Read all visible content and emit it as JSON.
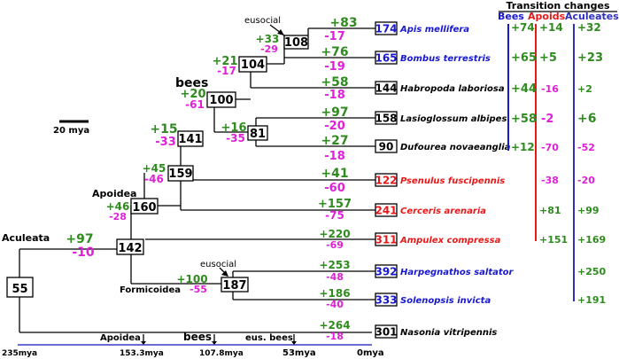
{
  "header": {
    "title": "Transition changes",
    "col_bees": "Bees",
    "col_apoids": "Apoids",
    "col_aculeates": "Aculeates"
  },
  "colors": {
    "gain": "#2e8b1e",
    "loss": "#e020d8",
    "bees": "#1818d0",
    "apoids": "#e81818",
    "aculeates": "#3030c0",
    "timeline": "#3a3ac0"
  },
  "scale_bar": {
    "label": "20 mya"
  },
  "labels": {
    "bees": "bees",
    "apoidea": "Apoidea",
    "aculeata": "Aculeata",
    "formicoidea": "Formicoidea",
    "eusocial_top": "eusocial",
    "eusocial_bottom": "eusocial"
  },
  "nodes": {
    "n55": "55",
    "n142": "142",
    "n160": "160",
    "n159": "159",
    "n141": "141",
    "n100": "100",
    "n104": "104",
    "n108": "108",
    "n81": "81",
    "n187": "187",
    "t174": "174",
    "t165": "165",
    "t144": "144",
    "t158": "158",
    "t90": "90",
    "t122": "122",
    "t241": "241",
    "t311": "311",
    "t392": "392",
    "t333": "333",
    "t301": "301"
  },
  "branch_changes": {
    "aculeata_gain": "+97",
    "aculeata_loss": "-10",
    "apoidea_gain": "+46",
    "apoidea_loss": "-28",
    "n159_gain": "+45",
    "n159_loss": "-46",
    "n141_gain": "+15",
    "n141_loss": "-33",
    "n100_gain": "+20",
    "n100_loss": "-61",
    "n104_gain": "+21",
    "n104_loss": "-17",
    "n108_gain": "+33",
    "n108_loss": "-29",
    "n81_gain": "+16",
    "n81_loss": "-35",
    "formic_gain": "+100",
    "formic_loss": "-55",
    "apis_gain": "+83",
    "apis_loss": "-17",
    "bombus_gain": "+76",
    "bombus_loss": "-19",
    "habropoda_gain": "+58",
    "habropoda_loss": "-18",
    "lasio_gain": "+97",
    "lasio_loss": "-20",
    "dufourea_gain": "+27",
    "dufourea_loss": "-18",
    "psenulus_gain": "+41",
    "psenulus_loss": "-60",
    "cerceris_gain": "+157",
    "cerceris_loss": "-75",
    "ampulex_gain": "+220",
    "ampulex_loss": "-69",
    "harpeg_gain": "+253",
    "harpeg_loss": "-48",
    "solenopsis_gain": "+186",
    "solenopsis_loss": "-40",
    "nasonia_gain": "+264",
    "nasonia_loss": "-18"
  },
  "species": {
    "apis": "Apis mellifera",
    "bombus": "Bombus terrestris",
    "habropoda": "Habropoda laboriosa",
    "lasio": "Lasioglossum albipes",
    "dufourea": "Dufourea novaeanglia",
    "psenulus": "Psenulus fuscipennis",
    "cerceris": "Cerceris arenaria",
    "ampulex": "Ampulex compressa",
    "harpeg": "Harpegnathos saltator",
    "solenopsis": "Solenopsis invicta",
    "nasonia": "Nasonia vitripennis"
  },
  "transition": {
    "bees": [
      "+74",
      "+65",
      "+44",
      "+58",
      "+12"
    ],
    "apoids": [
      "+14",
      "+5",
      "-16",
      "-2",
      "-70",
      "-38",
      "+81",
      "+151"
    ],
    "aculeates": [
      "+32",
      "+23",
      "+2",
      "+6",
      "-52",
      "-20",
      "+99",
      "+169",
      "+250",
      "+191"
    ]
  },
  "timeline": {
    "start": "235mya",
    "apoidea_label": "Apoidea",
    "apoidea_value": "153.3mya",
    "bees_label": "bees",
    "bees_value": "107.8mya",
    "eus_label": "eus. bees",
    "eus_value": "53mya",
    "end": "0mya"
  }
}
